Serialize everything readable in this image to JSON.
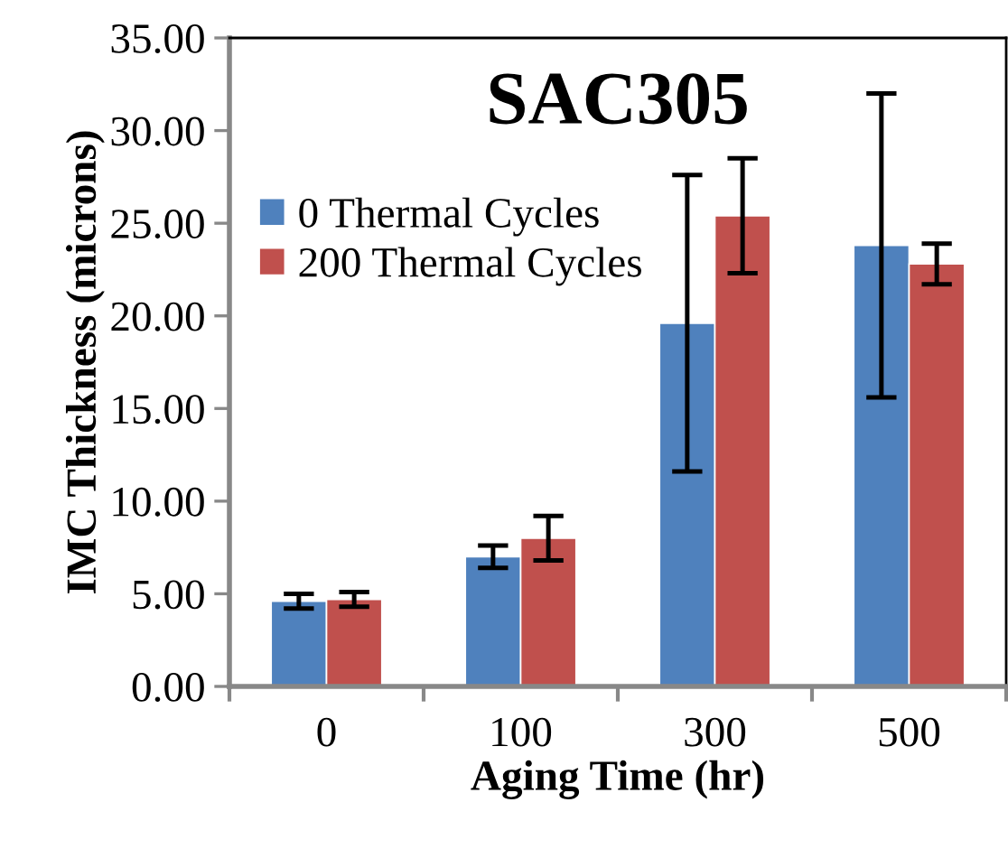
{
  "chart_data": {
    "type": "bar",
    "title": "SAC305",
    "xlabel": "Aging Time (hr)",
    "ylabel": "IMC Thickness (microns)",
    "categories": [
      "0",
      "100",
      "300",
      "500"
    ],
    "series": [
      {
        "name": "0 Thermal Cycles",
        "color": "#4f81bd",
        "values": [
          4.6,
          7.0,
          19.6,
          23.8
        ],
        "errors": [
          0.4,
          0.6,
          8.0,
          8.2
        ]
      },
      {
        "name": "200 Thermal Cycles",
        "color": "#c0504d",
        "values": [
          4.7,
          8.0,
          25.4,
          22.8
        ],
        "errors": [
          0.4,
          1.2,
          3.1,
          1.1
        ]
      }
    ],
    "ylim": [
      0,
      35
    ],
    "yticks": [
      {
        "value": 0,
        "label": "0.00"
      },
      {
        "value": 5,
        "label": "5.00"
      },
      {
        "value": 10,
        "label": "10.00"
      },
      {
        "value": 15,
        "label": "15.00"
      },
      {
        "value": 20,
        "label": "20.00"
      },
      {
        "value": 25,
        "label": "25.00"
      },
      {
        "value": 30,
        "label": "30.00"
      },
      {
        "value": 35,
        "label": "35.00"
      }
    ],
    "grid": false,
    "legend": "top left"
  }
}
